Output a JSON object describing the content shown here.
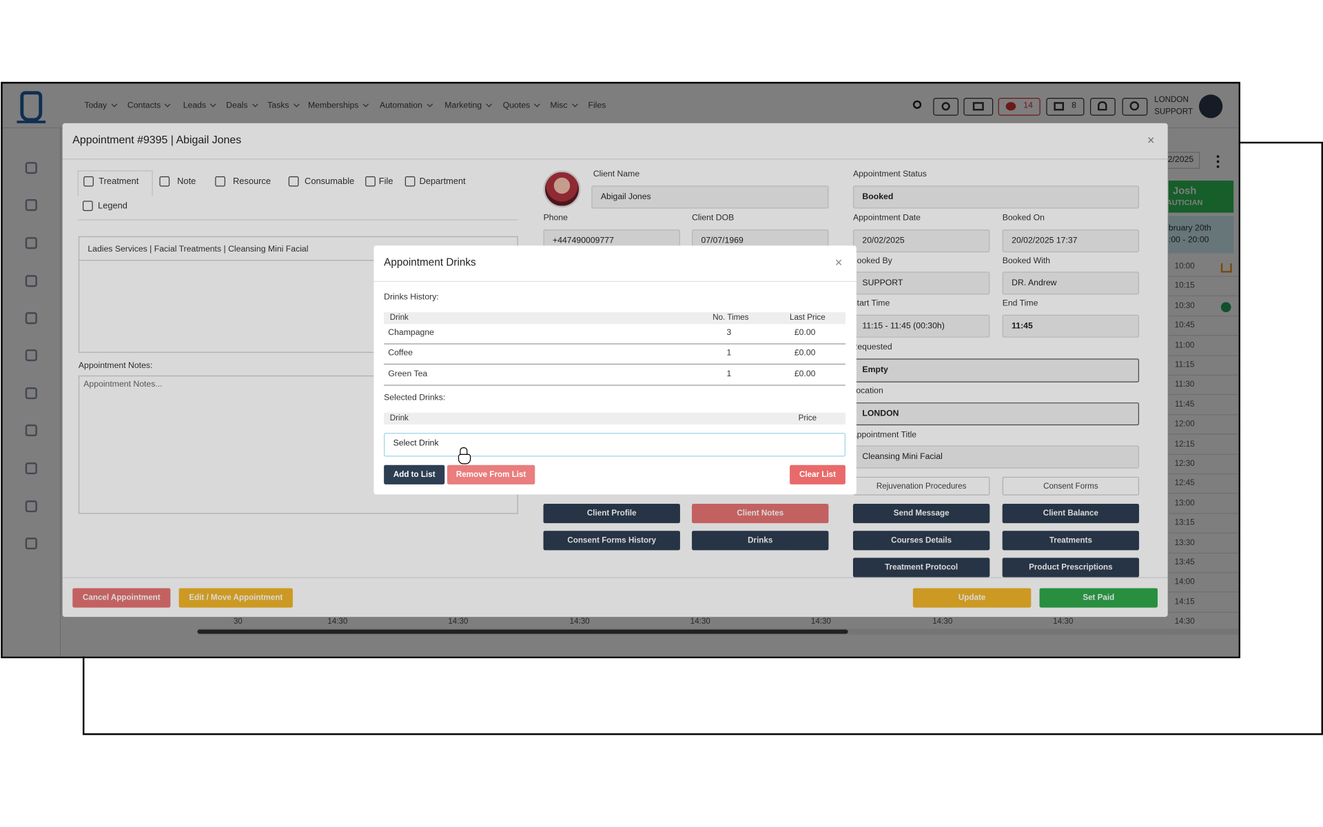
{
  "nav": {
    "items": [
      "Today",
      "Contacts",
      "Leads",
      "Deals",
      "Tasks",
      "Memberships",
      "Automation",
      "Marketing",
      "Quotes",
      "Misc",
      "Files"
    ],
    "chat_count": 14,
    "store_count": 8,
    "user_line1": "LONDON",
    "user_line2": "SUPPORT"
  },
  "calendar": {
    "date": "2/2025",
    "staff_name": "Josh",
    "staff_role": "AUTICIAN",
    "day": "bruary 20th",
    "hours": ":00 - 20:00",
    "times": [
      "10:00",
      "10:15",
      "10:30",
      "10:45",
      "11:00",
      "11:15",
      "11:30",
      "11:45",
      "12:00",
      "12:15",
      "12:30",
      "12:45",
      "13:00",
      "13:15",
      "13:30",
      "13:45",
      "14:00",
      "14:15",
      "14:30"
    ],
    "timeline": [
      "30",
      "14:30",
      "14:30",
      "14:30",
      "14:30",
      "14:30",
      "14:30",
      "14:30"
    ]
  },
  "appointment": {
    "title": "Appointment #9395 | Abigail Jones",
    "tabs": [
      "Treatment",
      "Note",
      "Resource",
      "Consumable",
      "File",
      "Department",
      "Legend"
    ],
    "service": "Ladies Services | Facial Treatments | Cleansing Mini Facial",
    "notes_label": "Appointment Notes:",
    "notes_placeholder": "Appointment Notes...",
    "fields": [
      {
        "label": "Client Name",
        "value": "Abigail Jones"
      },
      {
        "label": "Phone",
        "value": "+447490009777"
      },
      {
        "label": "Client DOB",
        "value": "07/07/1969"
      },
      {
        "label": "Appointment Status",
        "value": "Booked"
      },
      {
        "label": "Appointment Date",
        "value": "20/02/2025"
      },
      {
        "label": "Booked On",
        "value": "20/02/2025 17:37"
      },
      {
        "label": "Booked By",
        "value": "SUPPORT"
      },
      {
        "label": "Booked With",
        "value": "DR. Andrew"
      },
      {
        "label": "Start Time",
        "value": "11:15 - 11:45 (00:30h)"
      },
      {
        "label": "End Time",
        "value": "11:45"
      },
      {
        "label": "Requested",
        "value": "Empty"
      },
      {
        "label": "Location",
        "value": "LONDON"
      },
      {
        "label": "Appointment Title",
        "value": "Cleansing Mini Facial"
      }
    ],
    "buttons": [
      "Rejuvenation Procedures",
      "Consent Forms",
      "Client Profile",
      "Client Notes",
      "Send Message",
      "Client Balance",
      "Consent Forms History",
      "Drinks",
      "Courses Details",
      "Treatments",
      "Treatment Protocol",
      "Product Prescriptions"
    ],
    "footer": {
      "cancel": "Cancel Appointment",
      "edit": "Edit / Move Appointment",
      "update": "Update",
      "set_paid": "Set Paid"
    }
  },
  "drinks": {
    "title": "Appointment Drinks",
    "history_label": "Drinks History:",
    "history_columns": [
      "Drink",
      "No. Times",
      "Last Price"
    ],
    "history_rows": [
      [
        "Champagne",
        3,
        "£0.00"
      ],
      [
        "Coffee",
        1,
        "£0.00"
      ],
      [
        "Green Tea",
        1,
        "£0.00"
      ]
    ],
    "selected_label": "Selected Drinks:",
    "selected_columns": [
      "Drink",
      "Price"
    ],
    "select_placeholder": "Select Drink",
    "buttons": [
      "Add to List",
      "Remove From List",
      "Clear List"
    ]
  }
}
